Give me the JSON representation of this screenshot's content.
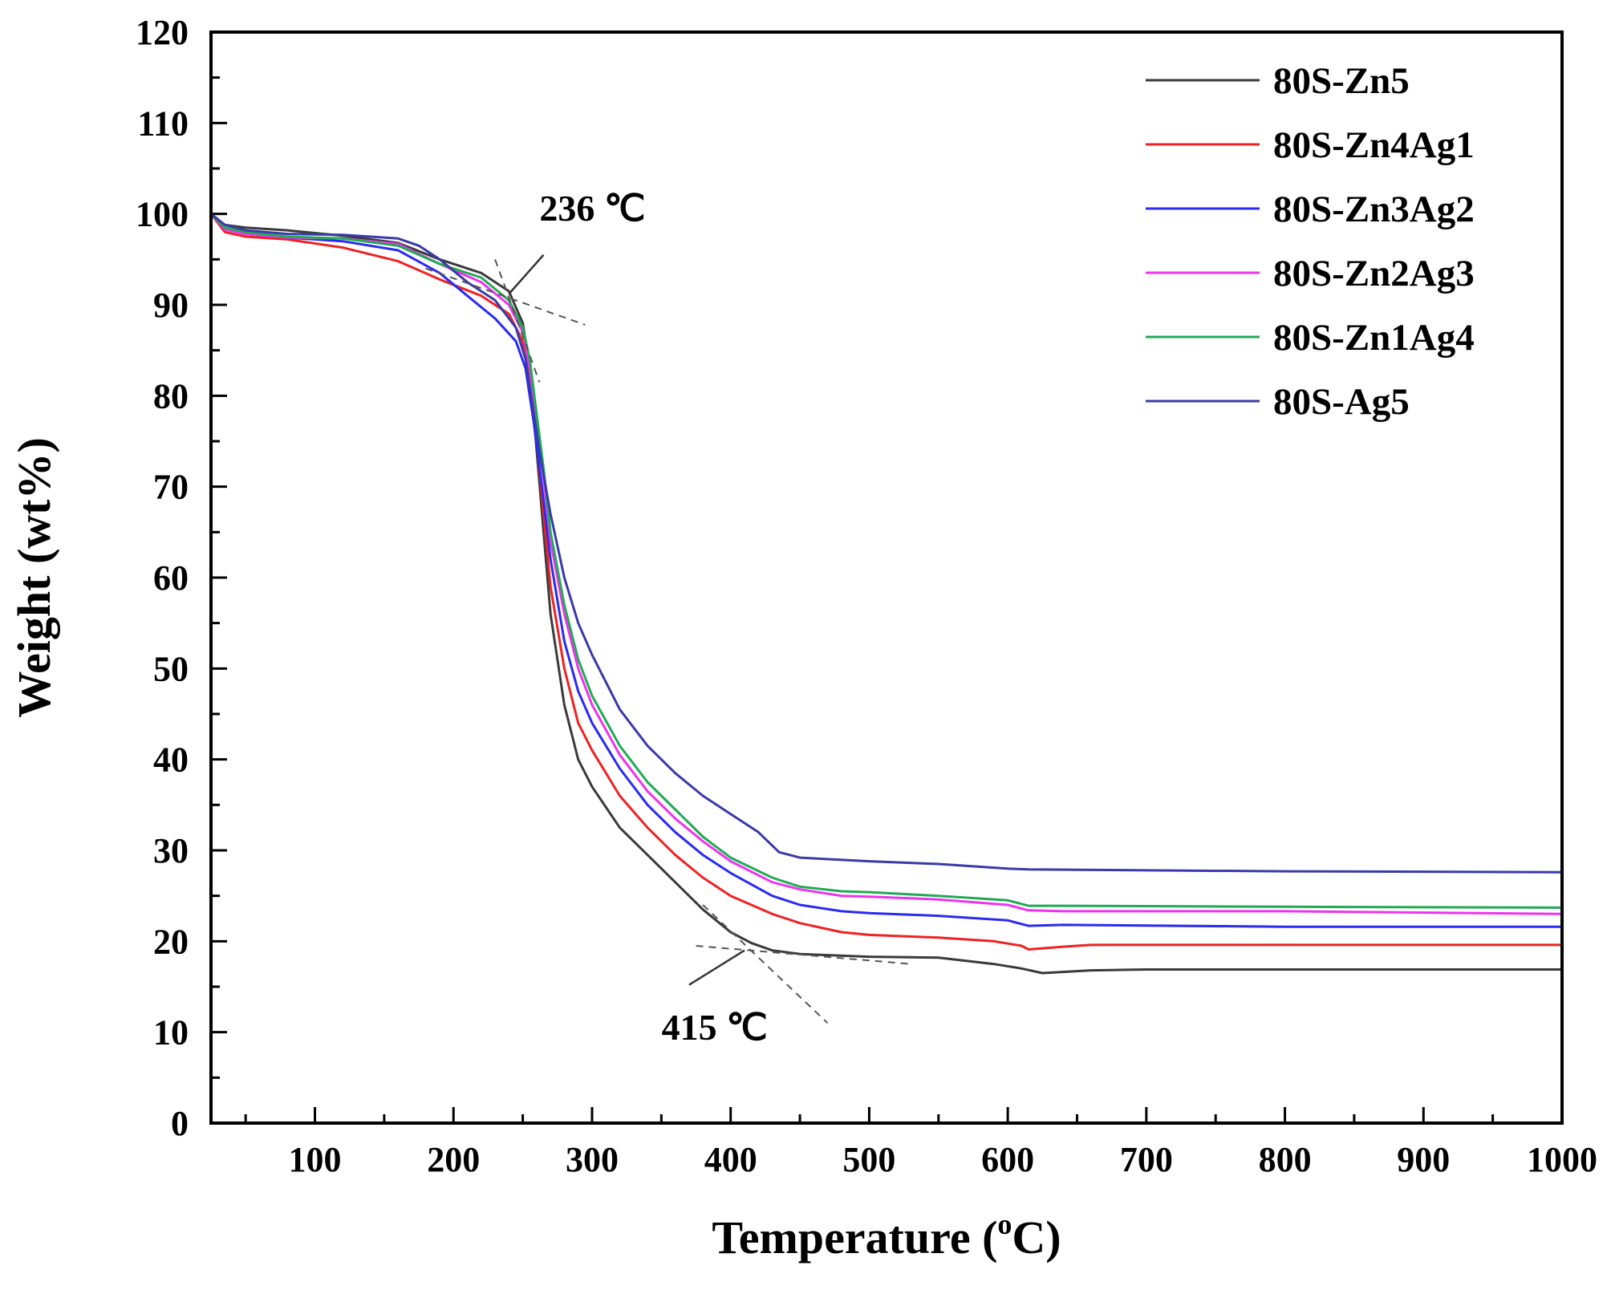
{
  "chart_data": {
    "type": "line",
    "title": "",
    "xlabel_main": "Temperature (",
    "xlabel_sup": "o",
    "xlabel_end": "C)",
    "ylabel": "Weight (wt%)",
    "xlim": [
      25,
      1000
    ],
    "ylim": [
      0,
      120
    ],
    "x_ticks": [
      100,
      200,
      300,
      400,
      500,
      600,
      700,
      800,
      900,
      1000
    ],
    "y_ticks": [
      0,
      10,
      20,
      30,
      40,
      50,
      60,
      70,
      80,
      90,
      100,
      110,
      120
    ],
    "legend_position": "top-right",
    "series": [
      {
        "name": "80S-Zn5",
        "color": "#3a3a3a",
        "points": [
          [
            25,
            100
          ],
          [
            35,
            98.8
          ],
          [
            50,
            98.5
          ],
          [
            80,
            98.2
          ],
          [
            120,
            97.6
          ],
          [
            160,
            96.8
          ],
          [
            190,
            95.0
          ],
          [
            220,
            93.5
          ],
          [
            240,
            91.5
          ],
          [
            250,
            88.0
          ],
          [
            255,
            83.0
          ],
          [
            260,
            74.0
          ],
          [
            265,
            65.0
          ],
          [
            270,
            56.0
          ],
          [
            280,
            46.0
          ],
          [
            290,
            40.0
          ],
          [
            300,
            37.0
          ],
          [
            320,
            32.5
          ],
          [
            340,
            29.5
          ],
          [
            360,
            26.5
          ],
          [
            380,
            23.5
          ],
          [
            400,
            21.0
          ],
          [
            415,
            19.8
          ],
          [
            430,
            19.0
          ],
          [
            450,
            18.6
          ],
          [
            500,
            18.3
          ],
          [
            550,
            18.2
          ],
          [
            590,
            17.5
          ],
          [
            610,
            17.0
          ],
          [
            625,
            16.5
          ],
          [
            660,
            16.8
          ],
          [
            700,
            16.9
          ],
          [
            800,
            16.9
          ],
          [
            1000,
            16.9
          ]
        ]
      },
      {
        "name": "80S-Zn4Ag1",
        "color": "#ee2222",
        "points": [
          [
            25,
            100
          ],
          [
            35,
            98.0
          ],
          [
            50,
            97.5
          ],
          [
            80,
            97.2
          ],
          [
            120,
            96.3
          ],
          [
            160,
            94.8
          ],
          [
            190,
            92.8
          ],
          [
            220,
            91.0
          ],
          [
            240,
            89.0
          ],
          [
            250,
            86.0
          ],
          [
            255,
            82.0
          ],
          [
            260,
            75.0
          ],
          [
            265,
            67.0
          ],
          [
            270,
            59.0
          ],
          [
            280,
            50.0
          ],
          [
            290,
            44.0
          ],
          [
            300,
            41.0
          ],
          [
            320,
            36.0
          ],
          [
            340,
            32.5
          ],
          [
            360,
            29.5
          ],
          [
            380,
            27.0
          ],
          [
            400,
            25.0
          ],
          [
            430,
            23.0
          ],
          [
            450,
            22.0
          ],
          [
            480,
            21.0
          ],
          [
            500,
            20.7
          ],
          [
            550,
            20.4
          ],
          [
            590,
            20.0
          ],
          [
            610,
            19.5
          ],
          [
            615,
            19.1
          ],
          [
            640,
            19.4
          ],
          [
            660,
            19.6
          ],
          [
            800,
            19.6
          ],
          [
            1000,
            19.6
          ]
        ]
      },
      {
        "name": "80S-Zn3Ag2",
        "color": "#2a2af0",
        "points": [
          [
            25,
            100
          ],
          [
            35,
            98.3
          ],
          [
            50,
            97.8
          ],
          [
            80,
            97.4
          ],
          [
            120,
            97.0
          ],
          [
            160,
            96.0
          ],
          [
            190,
            93.5
          ],
          [
            210,
            91.0
          ],
          [
            230,
            88.5
          ],
          [
            245,
            86.0
          ],
          [
            252,
            83.0
          ],
          [
            258,
            77.0
          ],
          [
            263,
            71.0
          ],
          [
            270,
            62.0
          ],
          [
            280,
            53.0
          ],
          [
            290,
            47.5
          ],
          [
            300,
            44.0
          ],
          [
            320,
            39.0
          ],
          [
            340,
            35.0
          ],
          [
            360,
            32.0
          ],
          [
            380,
            29.5
          ],
          [
            400,
            27.5
          ],
          [
            430,
            25.0
          ],
          [
            450,
            24.0
          ],
          [
            480,
            23.3
          ],
          [
            500,
            23.1
          ],
          [
            550,
            22.8
          ],
          [
            600,
            22.3
          ],
          [
            615,
            21.7
          ],
          [
            640,
            21.8
          ],
          [
            800,
            21.6
          ],
          [
            1000,
            21.6
          ]
        ]
      },
      {
        "name": "80S-Zn2Ag3",
        "color": "#ee33ee",
        "points": [
          [
            25,
            100
          ],
          [
            35,
            98.3
          ],
          [
            50,
            97.8
          ],
          [
            80,
            97.4
          ],
          [
            120,
            97.3
          ],
          [
            160,
            96.7
          ],
          [
            190,
            94.5
          ],
          [
            220,
            92.5
          ],
          [
            240,
            90.0
          ],
          [
            250,
            87.0
          ],
          [
            255,
            83.0
          ],
          [
            260,
            77.0
          ],
          [
            265,
            71.0
          ],
          [
            270,
            64.0
          ],
          [
            280,
            56.0
          ],
          [
            290,
            50.0
          ],
          [
            300,
            46.0
          ],
          [
            320,
            40.5
          ],
          [
            340,
            36.5
          ],
          [
            360,
            33.5
          ],
          [
            380,
            31.0
          ],
          [
            400,
            28.8
          ],
          [
            430,
            26.5
          ],
          [
            450,
            25.7
          ],
          [
            480,
            25.0
          ],
          [
            500,
            24.9
          ],
          [
            550,
            24.6
          ],
          [
            600,
            24.0
          ],
          [
            615,
            23.4
          ],
          [
            640,
            23.3
          ],
          [
            800,
            23.3
          ],
          [
            1000,
            23.0
          ]
        ]
      },
      {
        "name": "80S-Zn1Ag4",
        "color": "#22aa55",
        "points": [
          [
            25,
            100
          ],
          [
            35,
            98.5
          ],
          [
            50,
            98.0
          ],
          [
            80,
            97.5
          ],
          [
            120,
            97.3
          ],
          [
            160,
            96.5
          ],
          [
            190,
            94.5
          ],
          [
            220,
            93.0
          ],
          [
            240,
            90.5
          ],
          [
            250,
            87.5
          ],
          [
            255,
            84.0
          ],
          [
            260,
            78.0
          ],
          [
            265,
            72.0
          ],
          [
            270,
            65.0
          ],
          [
            280,
            57.0
          ],
          [
            290,
            51.0
          ],
          [
            300,
            47.0
          ],
          [
            320,
            41.5
          ],
          [
            340,
            37.5
          ],
          [
            360,
            34.5
          ],
          [
            380,
            31.5
          ],
          [
            400,
            29.2
          ],
          [
            430,
            27.0
          ],
          [
            450,
            26.0
          ],
          [
            480,
            25.5
          ],
          [
            500,
            25.4
          ],
          [
            550,
            25.0
          ],
          [
            600,
            24.5
          ],
          [
            615,
            23.9
          ],
          [
            640,
            23.9
          ],
          [
            800,
            23.8
          ],
          [
            1000,
            23.7
          ]
        ]
      },
      {
        "name": "80S-Ag5",
        "color": "#3a3aa8",
        "points": [
          [
            25,
            100
          ],
          [
            35,
            98.8
          ],
          [
            50,
            98.2
          ],
          [
            80,
            97.8
          ],
          [
            120,
            97.7
          ],
          [
            160,
            97.3
          ],
          [
            175,
            96.5
          ],
          [
            190,
            95.0
          ],
          [
            210,
            92.5
          ],
          [
            230,
            90.5
          ],
          [
            245,
            87.5
          ],
          [
            252,
            84.0
          ],
          [
            258,
            78.0
          ],
          [
            263,
            73.0
          ],
          [
            270,
            67.0
          ],
          [
            280,
            60.0
          ],
          [
            290,
            55.0
          ],
          [
            300,
            51.5
          ],
          [
            320,
            45.5
          ],
          [
            340,
            41.5
          ],
          [
            360,
            38.5
          ],
          [
            380,
            36.0
          ],
          [
            400,
            34.0
          ],
          [
            420,
            32.0
          ],
          [
            435,
            29.8
          ],
          [
            450,
            29.2
          ],
          [
            500,
            28.8
          ],
          [
            550,
            28.5
          ],
          [
            600,
            28.0
          ],
          [
            615,
            27.9
          ],
          [
            700,
            27.8
          ],
          [
            800,
            27.7
          ],
          [
            1000,
            27.6
          ]
        ]
      }
    ],
    "annotations": [
      {
        "text": "236 ℃",
        "x": 236,
        "y": 91.5
      },
      {
        "text": "415 ℃",
        "x": 415,
        "y": 19.5
      }
    ]
  }
}
